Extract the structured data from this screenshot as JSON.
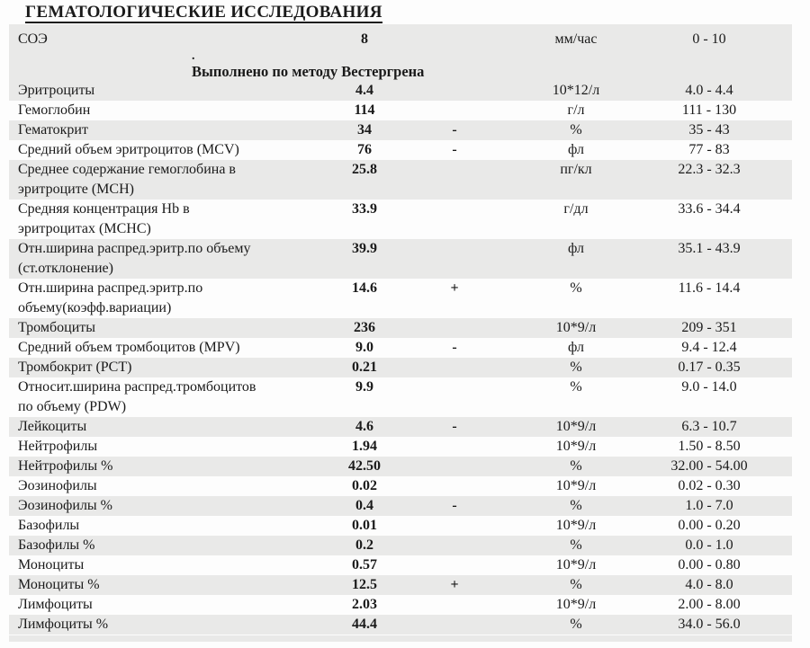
{
  "title": "ГЕМАТОЛОГИЧЕСКИЕ ИССЛЕДОВАНИЯ",
  "colors": {
    "stripe": "#e9e9e8",
    "text": "#1a1a1a"
  },
  "header": {
    "test": "СОЭ",
    "value": "8",
    "flag": "",
    "units": "мм/час",
    "range": "0 - 10",
    "note_dot": ".",
    "method_note": "Выполнено по методу Вестергрена"
  },
  "rows": [
    {
      "name": "Эритроциты",
      "value": "4.4",
      "flag": "",
      "units": "10*12/л",
      "range": "4.0 - 4.4"
    },
    {
      "name": "Гемоглобин",
      "value": "114",
      "flag": "",
      "units": "г/л",
      "range": "111 - 130"
    },
    {
      "name": "Гематокрит",
      "value": "34",
      "flag": "-",
      "units": "%",
      "range": "35 - 43"
    },
    {
      "name": "Средний объем эритроцитов (MCV)",
      "value": "76",
      "flag": "-",
      "units": "фл",
      "range": "77 - 83"
    },
    {
      "name": "Среднее содержание гемоглобина в\nэритроците (MCH)",
      "value": "25.8",
      "flag": "",
      "units": "пг/кл",
      "range": "22.3 - 32.3"
    },
    {
      "name": "Средняя концентрация Hb в\nэритроцитах (MCHC)",
      "value": "33.9",
      "flag": "",
      "units": "г/дл",
      "range": "33.6 - 34.4"
    },
    {
      "name": "Отн.ширина распред.эритр.по объему\n(ст.отклонение)",
      "value": "39.9",
      "flag": "",
      "units": "фл",
      "range": "35.1 - 43.9"
    },
    {
      "name": "Отн.ширина распред.эритр.по\nобъему(коэфф.вариации)",
      "value": "14.6",
      "flag": "+",
      "units": "%",
      "range": "11.6 - 14.4"
    },
    {
      "name": "Тромбоциты",
      "value": "236",
      "flag": "",
      "units": "10*9/л",
      "range": "209 - 351"
    },
    {
      "name": "Средний объем тромбоцитов (MPV)",
      "value": "9.0",
      "flag": "-",
      "units": "фл",
      "range": "9.4 - 12.4"
    },
    {
      "name": "Тромбокрит (PCT)",
      "value": "0.21",
      "flag": "",
      "units": "%",
      "range": "0.17 - 0.35"
    },
    {
      "name": "Относит.ширина распред.тромбоцитов\nпо объему (PDW)",
      "value": "9.9",
      "flag": "",
      "units": "%",
      "range": "9.0 - 14.0"
    },
    {
      "name": "Лейкоциты",
      "value": "4.6",
      "flag": "-",
      "units": "10*9/л",
      "range": "6.3 - 10.7"
    },
    {
      "name": "Нейтрофилы",
      "value": "1.94",
      "flag": "",
      "units": "10*9/л",
      "range": "1.50 - 8.50"
    },
    {
      "name": "Нейтрофилы %",
      "value": "42.50",
      "flag": "",
      "units": "%",
      "range": "32.00 - 54.00"
    },
    {
      "name": "Эозинофилы",
      "value": "0.02",
      "flag": "",
      "units": "10*9/л",
      "range": "0.02 - 0.30"
    },
    {
      "name": "Эозинофилы %",
      "value": "0.4",
      "flag": "-",
      "units": "%",
      "range": "1.0 - 7.0"
    },
    {
      "name": "Базофилы",
      "value": "0.01",
      "flag": "",
      "units": "10*9/л",
      "range": "0.00 - 0.20"
    },
    {
      "name": "Базофилы %",
      "value": "0.2",
      "flag": "",
      "units": "%",
      "range": "0.0 - 1.0"
    },
    {
      "name": "Моноциты",
      "value": "0.57",
      "flag": "",
      "units": "10*9/л",
      "range": "0.00 - 0.80"
    },
    {
      "name": "Моноциты %",
      "value": "12.5",
      "flag": "+",
      "units": "%",
      "range": "4.0 - 8.0"
    },
    {
      "name": "Лимфоциты",
      "value": "2.03",
      "flag": "",
      "units": "10*9/л",
      "range": "2.00 - 8.00"
    },
    {
      "name": "Лимфоциты %",
      "value": "44.4",
      "flag": "",
      "units": "%",
      "range": "34.0 - 56.0"
    }
  ]
}
